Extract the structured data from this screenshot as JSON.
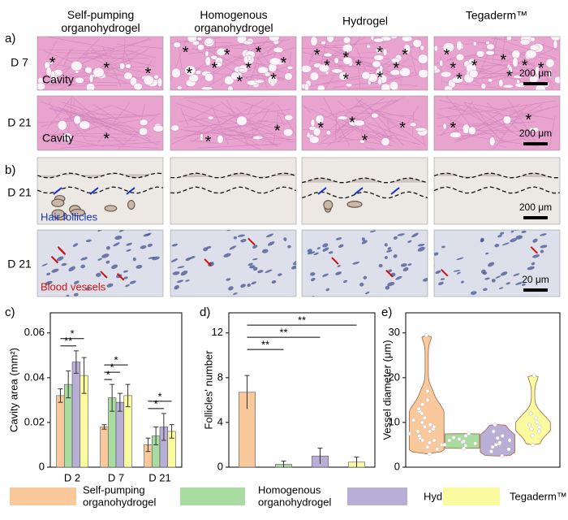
{
  "panels": {
    "label_a": "a)",
    "label_b": "b)",
    "columns": [
      "Self-pumping\norganohydrogel",
      "Homogenous\norganohydrogel",
      "Hydrogel",
      "Tegaderm™"
    ],
    "rows_a": [
      "D 7",
      "D 21"
    ],
    "rows_b": [
      "D 21",
      "D 21"
    ],
    "cavity": "Cavity",
    "asterisk": "*",
    "scale_a": "200 μm",
    "scale_b1": "200 μm",
    "scale_b2": "20 μm",
    "hair_follicles": "Hair follicles",
    "blood_vessels": "Blood vessels"
  },
  "chart_data": [
    {
      "type": "bar",
      "panel_label": "c)",
      "ylabel": "Cavity area (mm²)",
      "categories": [
        "D 2",
        "D 7",
        "D 21"
      ],
      "series": [
        {
          "name": "Self-pumping\norganohydrogel",
          "color": "#f9c89b",
          "values": [
            0.032,
            0.018,
            0.01
          ],
          "errors": [
            0.003,
            0.001,
            0.003
          ]
        },
        {
          "name": "Homogenous\norganohydrogel",
          "color": "#a8dca0",
          "values": [
            0.037,
            0.031,
            0.014
          ],
          "errors": [
            0.006,
            0.006,
            0.004
          ]
        },
        {
          "name": "Hydrogel",
          "color": "#b9aed6",
          "values": [
            0.047,
            0.029,
            0.018
          ],
          "errors": [
            0.005,
            0.004,
            0.006
          ]
        },
        {
          "name": "Tegaderm™",
          "color": "#fafa9e",
          "values": [
            0.041,
            0.032,
            0.016
          ],
          "errors": [
            0.008,
            0.005,
            0.003
          ]
        }
      ],
      "ylim": [
        0,
        0.069
      ],
      "yticks": [
        0,
        0.02,
        0.04,
        0.06
      ],
      "significance": [
        {
          "category": 0,
          "pair": [
            0,
            2
          ],
          "label": "**"
        },
        {
          "category": 0,
          "pair": [
            0,
            3
          ],
          "label": "*"
        },
        {
          "category": 1,
          "pair": [
            0,
            1
          ],
          "label": "*"
        },
        {
          "category": 1,
          "pair": [
            0,
            2
          ],
          "label": "*"
        },
        {
          "category": 1,
          "pair": [
            0,
            3
          ],
          "label": "*"
        },
        {
          "category": 2,
          "pair": [
            0,
            2
          ],
          "label": "*"
        },
        {
          "category": 2,
          "pair": [
            0,
            3
          ],
          "label": "*"
        }
      ]
    },
    {
      "type": "bar",
      "panel_label": "d)",
      "ylabel": "Follicles' number",
      "values": [
        6.7,
        0.25,
        1.0,
        0.45
      ],
      "errors": [
        1.5,
        0.3,
        0.7,
        0.45
      ],
      "colors": [
        "#f9c89b",
        "#a8dca0",
        "#b9aed6",
        "#fafa9e"
      ],
      "ylim": [
        0,
        13.8
      ],
      "yticks": [
        0,
        4,
        8,
        12
      ],
      "significance": [
        {
          "pair": [
            0,
            1
          ],
          "label": "**"
        },
        {
          "pair": [
            0,
            2
          ],
          "label": "**"
        },
        {
          "pair": [
            0,
            3
          ],
          "label": "**"
        }
      ]
    },
    {
      "type": "violin",
      "panel_label": "e)",
      "ylabel": "Vessel diameter (μm)",
      "colors": [
        "#f9c89b",
        "#a8dca0",
        "#b9aed6",
        "#fafa9e"
      ],
      "datasets": [
        [
          3,
          4,
          4.5,
          5,
          5.5,
          6,
          6,
          6.5,
          7,
          7,
          7.5,
          8,
          8,
          8.5,
          9,
          9,
          9.5,
          10,
          10.5,
          11,
          12,
          12.5,
          13,
          14,
          15,
          17,
          29.5
        ],
        [
          4.2,
          4.8,
          5,
          5.3,
          5.6,
          5.8,
          6,
          6.3,
          6.6,
          7,
          7.5
        ],
        [
          2.5,
          3.5,
          4,
          4.5,
          5,
          5.2,
          5.5,
          6,
          6.5,
          7,
          8,
          9.5
        ],
        [
          5,
          7,
          8,
          8.5,
          9,
          9.5,
          10,
          11,
          12,
          20.5
        ]
      ],
      "ylim": [
        0,
        34.5
      ],
      "yticks": [
        0,
        10,
        20,
        30
      ]
    }
  ]
}
